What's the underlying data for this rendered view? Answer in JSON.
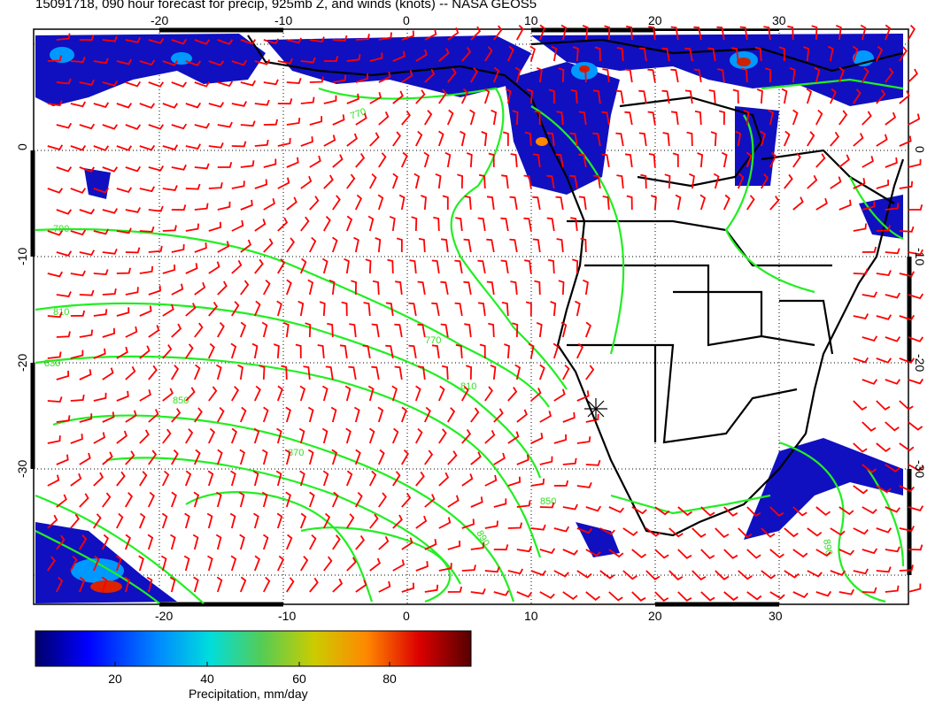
{
  "title": "15091718, 090 hour forecast for precip, 925mb Z, and winds (knots) -- NASA GEOS5",
  "map": {
    "lon_ticks": [
      "-20",
      "-10",
      "0",
      "10",
      "20",
      "30"
    ],
    "lat_ticks": [
      "0",
      "-10",
      "-20",
      "-30"
    ],
    "contour_labels": [
      "770",
      "790",
      "810",
      "830",
      "850",
      "870",
      "890"
    ],
    "colors": {
      "precip_low": "#00008b",
      "precip_mid": "#00bcd4",
      "precip_high": "#7a0000",
      "contour": "#22ee22",
      "wind_barb": "#ff0000",
      "coastline": "#000000"
    }
  },
  "colorbar": {
    "label": "Precipitation, mm/day",
    "ticks": [
      "20",
      "40",
      "60",
      "80"
    ],
    "colors": [
      "#00008b",
      "#0000ff",
      "#0066ff",
      "#00ccff",
      "#22ccaa",
      "#66cc44",
      "#cccc00",
      "#ff8800",
      "#ff2200",
      "#aa0000",
      "#550000"
    ]
  }
}
